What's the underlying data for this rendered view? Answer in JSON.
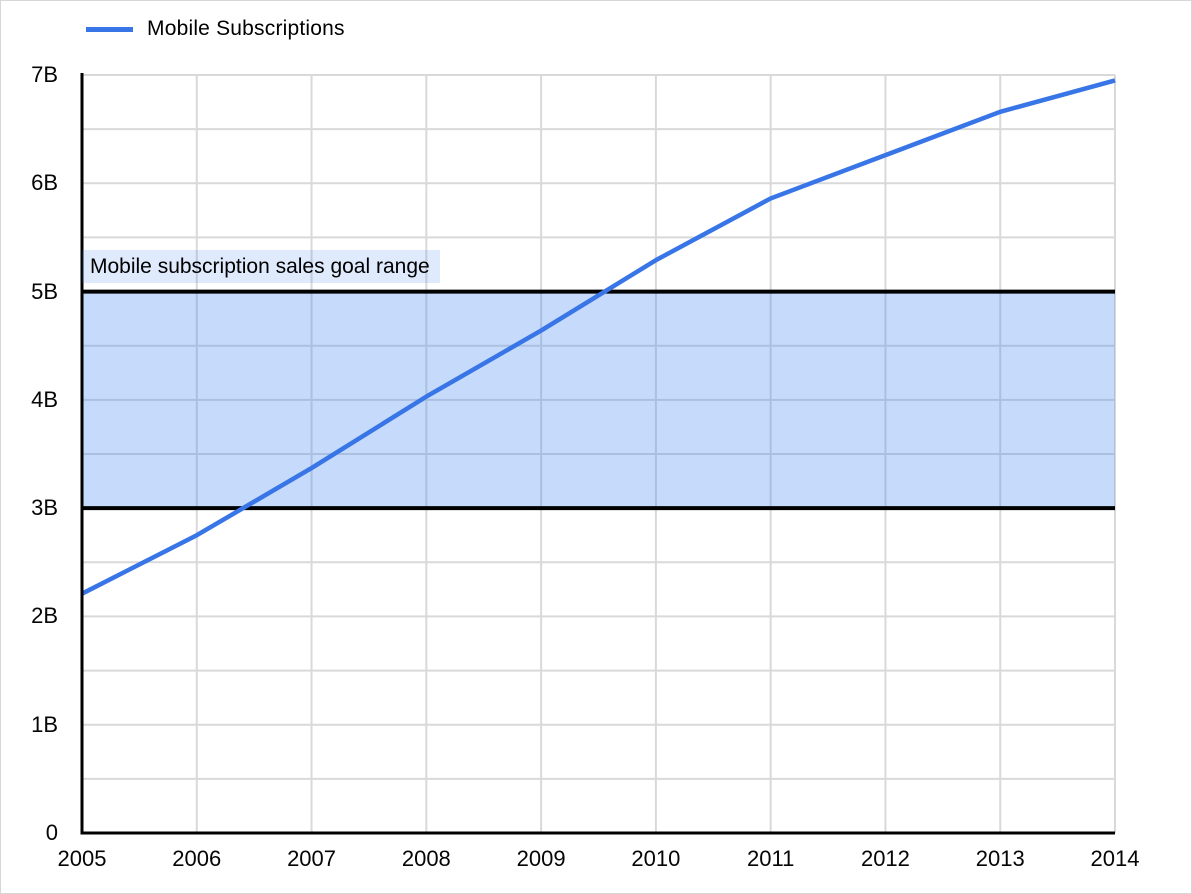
{
  "legend": {
    "label": "Mobile Subscriptions"
  },
  "colors": {
    "line": "#3875e6",
    "band_fill": "rgba(66,133,244,0.30)",
    "band_border": "#000000",
    "band_label_bg": "rgba(66,133,244,0.17)",
    "gridline": "#d9d9d9",
    "axis": "#000000",
    "text": "#000000"
  },
  "chart_data": {
    "type": "line",
    "title": "",
    "xlabel": "",
    "ylabel": "",
    "unit": "billions",
    "x": [
      2005,
      2006,
      2007,
      2008,
      2009,
      2010,
      2011,
      2012,
      2013,
      2014
    ],
    "x_tick_labels": [
      "2005",
      "2006",
      "2007",
      "2008",
      "2009",
      "2010",
      "2011",
      "2012",
      "2013",
      "2014"
    ],
    "series": [
      {
        "name": "Mobile Subscriptions",
        "values": [
          2.21,
          2.75,
          3.37,
          4.03,
          4.64,
          5.29,
          5.86,
          6.26,
          6.66,
          6.95
        ]
      }
    ],
    "ylim": [
      0,
      7
    ],
    "y_major_step": 1,
    "y_minor_step": 0.5,
    "y_tick_labels": [
      "0",
      "1B",
      "2B",
      "3B",
      "4B",
      "5B",
      "6B",
      "7B"
    ],
    "grid": true,
    "legend_position": "top-left",
    "band": {
      "from": 3,
      "to": 5,
      "label": "Mobile subscription sales goal range"
    }
  }
}
